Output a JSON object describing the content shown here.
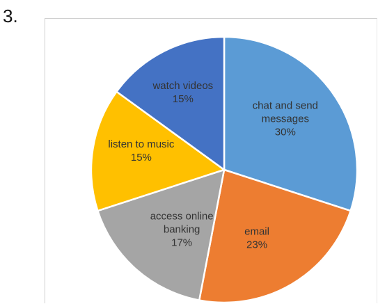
{
  "question_number": "3.",
  "chart_data": {
    "type": "pie",
    "slices": [
      {
        "label_lines": [
          "chat and send",
          "messages",
          "30%"
        ],
        "category": "chat and send messages",
        "value": 30,
        "color": "#5B9BD5"
      },
      {
        "label_lines": [
          "email",
          "23%"
        ],
        "category": "email",
        "value": 23,
        "color": "#ED7D31"
      },
      {
        "label_lines": [
          "access online",
          "banking",
          "17%"
        ],
        "category": "access online banking",
        "value": 17,
        "color": "#A5A5A5"
      },
      {
        "label_lines": [
          "listen to music",
          "15%"
        ],
        "category": "listen to music",
        "value": 15,
        "color": "#FFC000"
      },
      {
        "label_lines": [
          "watch videos",
          "15%"
        ],
        "category": "watch videos",
        "value": 15,
        "color": "#4472C4"
      }
    ],
    "start_angle": "12 o'clock",
    "direction": "clockwise",
    "legend": "none (labels inside slices)"
  }
}
